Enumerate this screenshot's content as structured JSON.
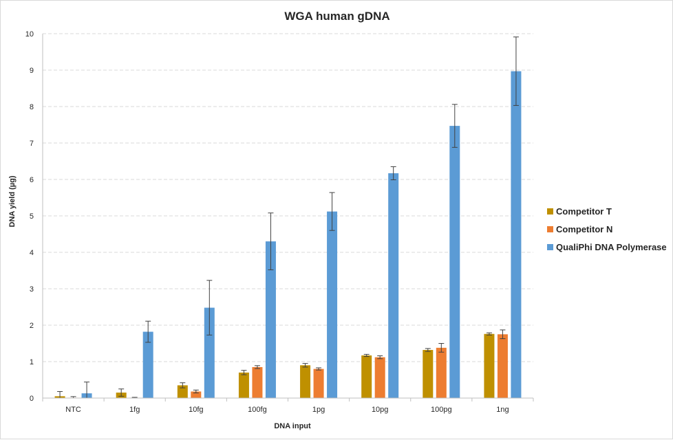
{
  "chart_data": {
    "type": "bar",
    "title": "WGA human gDNA",
    "xlabel": "DNA input",
    "ylabel": "DNA yield (µg)",
    "ylim": [
      0,
      10
    ],
    "yticks": [
      "0",
      "1",
      "2",
      "3",
      "4",
      "5",
      "6",
      "7",
      "8",
      "9",
      "10"
    ],
    "grid": "horizontal dashed",
    "legend_position": "right",
    "categories": [
      "NTC",
      "1fg",
      "10fg",
      "100fg",
      "1pg",
      "10pg",
      "100pg",
      "1ng"
    ],
    "series": [
      {
        "name": "Competitor T",
        "color": "#BF9000",
        "values": [
          0.05,
          0.15,
          0.35,
          0.7,
          0.9,
          1.17,
          1.32,
          1.76
        ],
        "errors": [
          0.13,
          0.1,
          0.07,
          0.06,
          0.05,
          0.03,
          0.04,
          0.03
        ]
      },
      {
        "name": "Competitor N",
        "color": "#ED7D31",
        "values": [
          0.01,
          0.01,
          0.18,
          0.85,
          0.8,
          1.12,
          1.38,
          1.75
        ],
        "errors": [
          0.03,
          0.01,
          0.04,
          0.04,
          0.03,
          0.04,
          0.12,
          0.12
        ]
      },
      {
        "name": "QualiPhi DNA Polymerase",
        "color": "#5B9BD5",
        "values": [
          0.13,
          1.82,
          2.48,
          4.3,
          5.12,
          6.17,
          7.47,
          8.97
        ],
        "errors": [
          0.31,
          0.29,
          0.75,
          0.78,
          0.52,
          0.18,
          0.59,
          0.94
        ]
      }
    ]
  }
}
